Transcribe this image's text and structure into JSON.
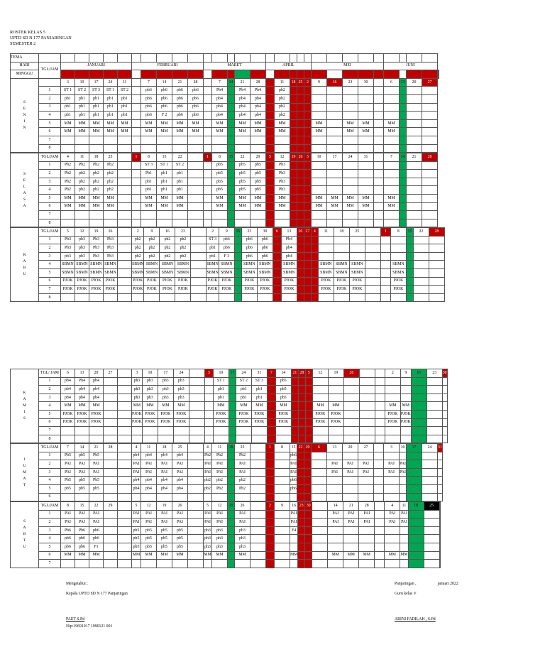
{
  "header": {
    "line1": "ROSTER KELAS 5",
    "line2": "UPTD SD N 177 PANJARINGAN",
    "line3": "SEMESTER 2"
  },
  "tema_label": "TEMA",
  "hari_label": "HARI",
  "minggu_label": "MINGGU",
  "tgljam_label": "TGL/JAM",
  "months": [
    "JANUARI",
    "FEBRUARI",
    "MARET",
    "APRIL",
    "MEI",
    "JUNI"
  ],
  "cols": "bk1:12,j:12,j1:23,j2:23,j3:23,j4:23,j5:23,fbk:13,f1:23,f2:23,f3:23,f4:23,mbk:12,m1:23,m2:10,m3:23,m4:23,abk:12,a1:23,a2:9,a3:9,a4:9,mybk:12,my1:23,my2:23,my3:23,my4:23,my5:23,jbk:14,jn1:23,jn2:10,jn3:10,jn4:10",
  "row_heights": "",
  "tables": [
    {
      "key": "t1",
      "day": "SENIN",
      "top_header": true,
      "rows": [
        [
          "",
          "_r1",
          "_r",
          "_r",
          "_r",
          "_r",
          "_r",
          "",
          "_r2",
          "_r",
          "_r",
          "_r",
          "",
          "_r3",
          "_g",
          "_r",
          "_r",
          "_r4",
          "_r",
          "_r",
          "_r",
          "",
          "_r5",
          "_r",
          "_r",
          "_r",
          "",
          "_r6",
          "_r",
          "_r",
          "_r",
          "_r"
        ],
        [
          "",
          "",
          "3",
          "10",
          "17",
          "24",
          "31",
          "",
          "7",
          "14",
          "21",
          "28",
          "",
          "7",
          "g:14",
          "21",
          "28",
          "r:",
          "11",
          "r:18",
          "r:25",
          "r:2",
          "9",
          "r:16",
          "23",
          "30",
          "",
          "6",
          "g:13",
          "20",
          "r:27"
        ],
        [
          "1",
          "",
          "ST 1",
          "ST 2",
          "ST 3",
          "ST 1",
          "ST 2",
          "",
          "pb6",
          "pb6",
          "pb6",
          "pb6",
          "",
          "Pb4",
          "g:",
          "Pb4",
          "Pb4",
          "r:",
          "pb2",
          "r:",
          "r:",
          "",
          "",
          "",
          "",
          "",
          "",
          "",
          "g:",
          "",
          ""
        ],
        [
          "2",
          "",
          "pb1",
          "pb1",
          "pb1",
          "pb1",
          "pb1",
          "",
          "pb6",
          "pb6",
          "pb6",
          "pb6",
          "",
          "pb4",
          "g:",
          "pb4",
          "pb4",
          "r:",
          "pb2",
          "r:",
          "r:",
          "",
          "",
          "",
          "",
          "",
          "",
          "",
          "g:",
          "",
          ""
        ],
        [
          "3",
          "",
          "pb1",
          "pb1",
          "pb1",
          "pb1",
          "pb1",
          "",
          "pb6",
          "pb6",
          "pb6",
          "pb6",
          "",
          "pb4",
          "g:",
          "pb4",
          "pb4",
          "r:",
          "pb2",
          "r:",
          "r:",
          "",
          "",
          "",
          "",
          "",
          "",
          "",
          "g:",
          "",
          ""
        ],
        [
          "4",
          "",
          "pb1",
          "pb1",
          "pb1",
          "pb1",
          "pb1",
          "",
          "pb6",
          "F 2",
          "pb6",
          "pb6",
          "",
          "pb4",
          "g:",
          "pb4",
          "pb4",
          "r:",
          "pb2",
          "r:",
          "r:",
          "",
          "",
          "",
          "",
          "",
          "",
          "",
          "g:",
          "",
          ""
        ],
        [
          "5",
          "",
          "MM",
          "MM",
          "MM",
          "MM",
          "MM",
          "",
          "MM",
          "MM",
          "MM",
          "MM",
          "",
          "MM",
          "g:",
          "MM",
          "MM",
          "r:",
          "MM",
          "r:",
          "r:",
          "",
          "MM",
          "",
          "MM",
          "MM",
          "",
          "MM",
          "g:",
          "",
          ""
        ],
        [
          "6",
          "",
          "MM",
          "MM",
          "MM",
          "MM",
          "MM",
          "",
          "MM",
          "MM",
          "MM",
          "MM",
          "",
          "MM",
          "g:",
          "MM",
          "MM",
          "r:",
          "MM",
          "r:",
          "r:",
          "",
          "MM",
          "",
          "MM",
          "MM",
          "",
          "MM",
          "g:",
          "",
          ""
        ],
        [
          "7",
          "",
          "",
          "",
          "",
          "",
          "",
          "",
          "",
          "",
          "",
          "",
          "",
          "",
          "g:",
          "",
          "",
          "r:",
          "",
          "r:",
          "r:",
          "",
          "",
          "",
          "",
          "",
          "",
          "",
          "g:",
          "",
          ""
        ],
        [
          "8",
          "",
          "",
          "",
          "",
          "",
          "",
          "",
          "",
          "",
          "",
          "",
          "",
          "",
          "g:",
          "",
          "",
          "r:",
          "",
          "r:",
          "r:",
          "",
          "",
          "",
          "",
          "",
          "",
          "",
          "g:",
          "",
          ""
        ]
      ]
    }
  ]
}
